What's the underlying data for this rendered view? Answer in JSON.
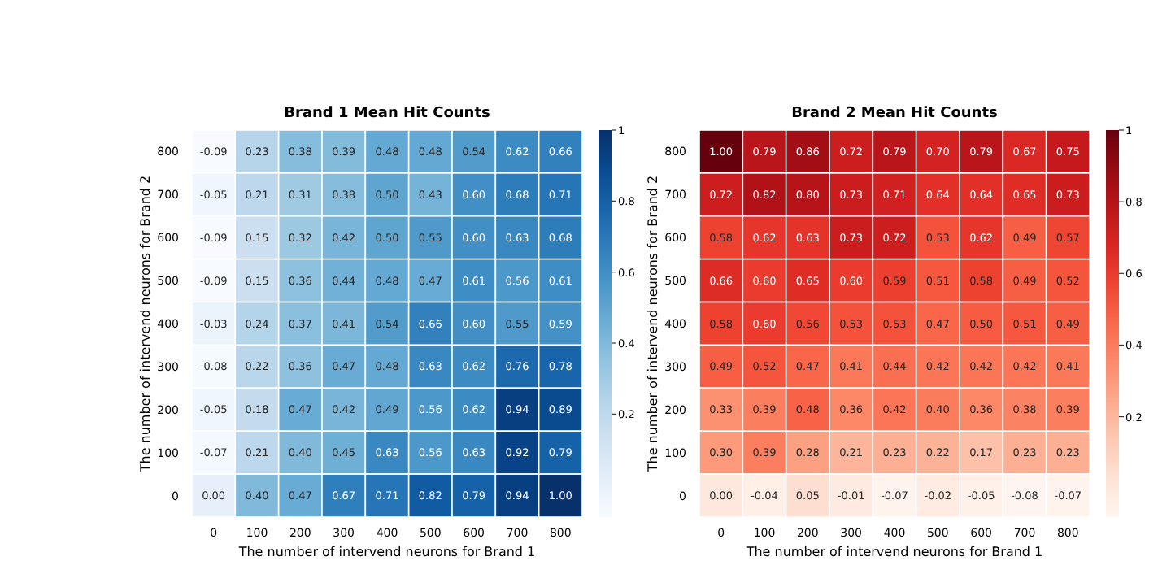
{
  "chart_data": [
    {
      "type": "heatmap",
      "title": "Brand 1 Mean Hit Counts",
      "xlabel": "The number of intervend neurons for Brand 1",
      "ylabel": "The number of intervend neurons for Brand 2",
      "categories": [
        "0",
        "100",
        "200",
        "300",
        "400",
        "500",
        "600",
        "700",
        "800"
      ],
      "y_categories": [
        "800",
        "700",
        "600",
        "500",
        "400",
        "300",
        "200",
        "100",
        "0"
      ],
      "clim": [
        -0.09,
        1
      ],
      "cticks": [
        0.2,
        0.4,
        0.6,
        0.8,
        1
      ],
      "cells": [
        [
          -0.09,
          0.23,
          0.38,
          0.39,
          0.48,
          0.48,
          0.54,
          0.62,
          0.66
        ],
        [
          -0.05,
          0.21,
          0.31,
          0.38,
          0.5,
          0.43,
          0.6,
          0.68,
          0.71
        ],
        [
          -0.09,
          0.15,
          0.32,
          0.42,
          0.5,
          0.55,
          0.6,
          0.63,
          0.68
        ],
        [
          -0.09,
          0.15,
          0.36,
          0.44,
          0.48,
          0.47,
          0.61,
          0.56,
          0.61
        ],
        [
          -0.03,
          0.24,
          0.37,
          0.41,
          0.54,
          0.66,
          0.6,
          0.55,
          0.59
        ],
        [
          -0.08,
          0.22,
          0.36,
          0.47,
          0.48,
          0.63,
          0.62,
          0.76,
          0.78
        ],
        [
          -0.05,
          0.18,
          0.47,
          0.42,
          0.49,
          0.56,
          0.62,
          0.94,
          0.89
        ],
        [
          -0.07,
          0.21,
          0.4,
          0.45,
          0.63,
          0.56,
          0.63,
          0.92,
          0.79
        ],
        [
          0.0,
          0.4,
          0.47,
          0.67,
          0.71,
          0.82,
          0.79,
          0.94,
          1.0
        ]
      ],
      "cell_labels": [
        [
          "-0.09",
          "0.23",
          "0.38",
          "0.39",
          "0.48",
          "0.48",
          "0.54",
          "0.62",
          "0.66"
        ],
        [
          "-0.05",
          "0.21",
          "0.31",
          "0.38",
          "0.50",
          "0.43",
          "0.60",
          "0.68",
          "0.71"
        ],
        [
          "-0.09",
          "0.15",
          "0.32",
          "0.42",
          "0.50",
          "0.55",
          "0.60",
          "0.63",
          "0.68"
        ],
        [
          "-0.09",
          "0.15",
          "0.36",
          "0.44",
          "0.48",
          "0.47",
          "0.61",
          "0.56",
          "0.61"
        ],
        [
          "-0.03",
          "0.24",
          "0.37",
          "0.41",
          "0.54",
          "0.66",
          "0.60",
          "0.55",
          "0.59"
        ],
        [
          "-0.08",
          "0.22",
          "0.36",
          "0.47",
          "0.48",
          "0.63",
          "0.62",
          "0.76",
          "0.78"
        ],
        [
          "-0.05",
          "0.18",
          "0.47",
          "0.42",
          "0.49",
          "0.56",
          "0.62",
          "0.94",
          "0.89"
        ],
        [
          "-0.07",
          "0.21",
          "0.40",
          "0.45",
          "0.63",
          "0.56",
          "0.63",
          "0.92",
          "0.79"
        ],
        [
          "0.00",
          "0.40",
          "0.47",
          "0.67",
          "0.71",
          "0.82",
          "0.79",
          "0.94",
          "1.00"
        ]
      ]
    },
    {
      "type": "heatmap",
      "title": "Brand 2 Mean Hit Counts",
      "xlabel": "The number of intervend neurons for Brand 1",
      "ylabel": "The number of intervend neurons for Brand 2",
      "categories": [
        "0",
        "100",
        "200",
        "300",
        "400",
        "500",
        "600",
        "700",
        "800"
      ],
      "y_categories": [
        "800",
        "700",
        "600",
        "500",
        "400",
        "300",
        "200",
        "100",
        "0"
      ],
      "clim": [
        -0.08,
        1
      ],
      "cticks": [
        0.2,
        0.4,
        0.6,
        0.8,
        1
      ],
      "cells": [
        [
          1.0,
          0.79,
          0.86,
          0.72,
          0.79,
          0.7,
          0.79,
          0.67,
          0.75
        ],
        [
          0.72,
          0.82,
          0.8,
          0.73,
          0.71,
          0.64,
          0.64,
          0.65,
          0.73
        ],
        [
          0.58,
          0.62,
          0.63,
          0.73,
          0.72,
          0.53,
          0.62,
          0.49,
          0.57
        ],
        [
          0.66,
          0.6,
          0.65,
          0.6,
          0.59,
          0.51,
          0.58,
          0.49,
          0.52
        ],
        [
          0.58,
          0.6,
          0.56,
          0.53,
          0.53,
          0.47,
          0.5,
          0.51,
          0.49
        ],
        [
          0.49,
          0.52,
          0.47,
          0.41,
          0.44,
          0.42,
          0.42,
          0.42,
          0.41
        ],
        [
          0.33,
          0.39,
          0.48,
          0.36,
          0.42,
          0.4,
          0.36,
          0.38,
          0.39
        ],
        [
          0.3,
          0.39,
          0.28,
          0.21,
          0.23,
          0.22,
          0.17,
          0.23,
          0.23
        ],
        [
          0.0,
          -0.04,
          0.05,
          -0.01,
          -0.07,
          -0.02,
          -0.05,
          -0.08,
          -0.07
        ]
      ],
      "cell_labels": [
        [
          "1.00",
          "0.79",
          "0.86",
          "0.72",
          "0.79",
          "0.70",
          "0.79",
          "0.67",
          "0.75"
        ],
        [
          "0.72",
          "0.82",
          "0.80",
          "0.73",
          "0.71",
          "0.64",
          "0.64",
          "0.65",
          "0.73"
        ],
        [
          "0.58",
          "0.62",
          "0.63",
          "0.73",
          "0.72",
          "0.53",
          "0.62",
          "0.49",
          "0.57"
        ],
        [
          "0.66",
          "0.60",
          "0.65",
          "0.60",
          "0.59",
          "0.51",
          "0.58",
          "0.49",
          "0.52"
        ],
        [
          "0.58",
          "0.60",
          "0.56",
          "0.53",
          "0.53",
          "0.47",
          "0.50",
          "0.51",
          "0.49"
        ],
        [
          "0.49",
          "0.52",
          "0.47",
          "0.41",
          "0.44",
          "0.42",
          "0.42",
          "0.42",
          "0.41"
        ],
        [
          "0.33",
          "0.39",
          "0.48",
          "0.36",
          "0.42",
          "0.40",
          "0.36",
          "0.38",
          "0.39"
        ],
        [
          "0.30",
          "0.39",
          "0.28",
          "0.21",
          "0.23",
          "0.22",
          "0.17",
          "0.23",
          "0.23"
        ],
        [
          "0.00",
          "-0.04",
          "0.05",
          "-0.01",
          "-0.07",
          "-0.02",
          "-0.05",
          "-0.08",
          "-0.07"
        ]
      ]
    }
  ]
}
